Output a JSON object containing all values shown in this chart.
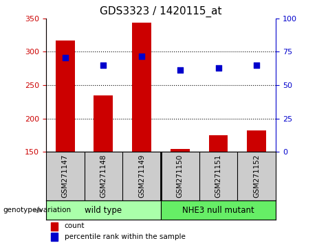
{
  "title": "GDS3323 / 1420115_at",
  "samples": [
    "GSM271147",
    "GSM271148",
    "GSM271149",
    "GSM271150",
    "GSM271151",
    "GSM271152"
  ],
  "bar_values": [
    317,
    235,
    343,
    154,
    175,
    182
  ],
  "percentile_values": [
    70.5,
    65.0,
    71.5,
    61.5,
    63.0,
    65.0
  ],
  "bar_color": "#cc0000",
  "dot_color": "#0000cc",
  "ylim_left": [
    150,
    350
  ],
  "ylim_right": [
    0,
    100
  ],
  "yticks_left": [
    150,
    200,
    250,
    300,
    350
  ],
  "yticks_right": [
    0,
    25,
    50,
    75,
    100
  ],
  "groups": [
    {
      "label": "wild type",
      "color": "#aaffaa",
      "span": [
        0,
        3
      ]
    },
    {
      "label": "NHE3 null mutant",
      "color": "#66ee66",
      "span": [
        3,
        6
      ]
    }
  ],
  "genotype_label": "genotype/variation",
  "legend_items": [
    {
      "label": "count",
      "color": "#cc0000"
    },
    {
      "label": "percentile rank within the sample",
      "color": "#0000cc"
    }
  ],
  "bar_width": 0.5,
  "plot_bg": "#ffffff",
  "label_bg": "#cccccc",
  "axis_color_left": "#cc0000",
  "axis_color_right": "#0000cc"
}
